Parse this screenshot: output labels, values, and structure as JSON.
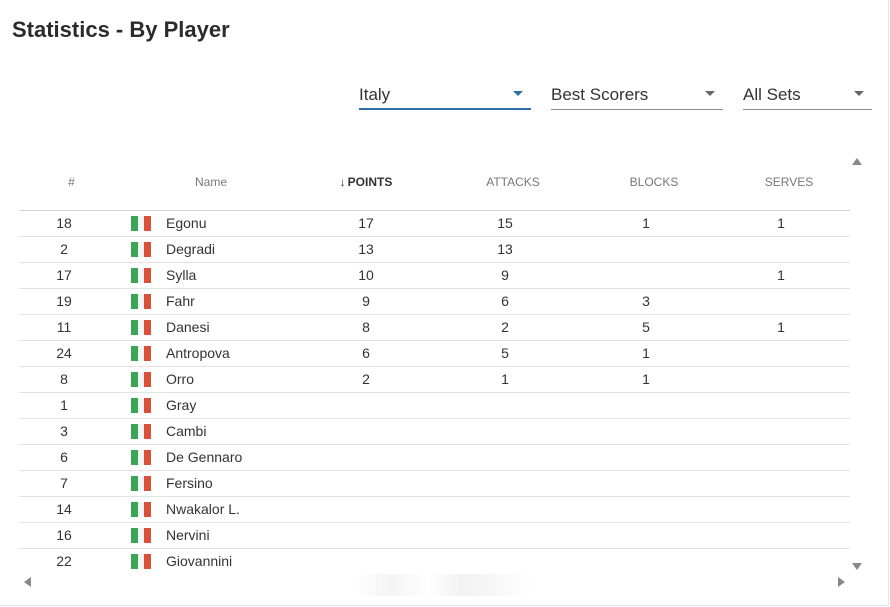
{
  "page": {
    "title": "Statistics - By Player"
  },
  "filters": {
    "country": "Italy",
    "stat": "Best Scorers",
    "sets": "All Sets"
  },
  "colors": {
    "accent": "#2a6fa8",
    "flag_green": "#3aa655",
    "flag_white": "#f4f4f4",
    "flag_red": "#d9503a"
  },
  "table": {
    "headers": {
      "num": "#",
      "name": "Name",
      "points_arrow": "↓",
      "points": "POINTS",
      "attacks": "ATTACKS",
      "blocks": "BLOCKS",
      "serves": "SERVES"
    },
    "rows": [
      {
        "num": "18",
        "name": "Egonu",
        "points": "17",
        "attacks": "15",
        "blocks": "1",
        "serves": "1"
      },
      {
        "num": "2",
        "name": "Degradi",
        "points": "13",
        "attacks": "13",
        "blocks": "",
        "serves": ""
      },
      {
        "num": "17",
        "name": "Sylla",
        "points": "10",
        "attacks": "9",
        "blocks": "",
        "serves": "1"
      },
      {
        "num": "19",
        "name": "Fahr",
        "points": "9",
        "attacks": "6",
        "blocks": "3",
        "serves": ""
      },
      {
        "num": "11",
        "name": "Danesi",
        "points": "8",
        "attacks": "2",
        "blocks": "5",
        "serves": "1"
      },
      {
        "num": "24",
        "name": "Antropova",
        "points": "6",
        "attacks": "5",
        "blocks": "1",
        "serves": ""
      },
      {
        "num": "8",
        "name": "Orro",
        "points": "2",
        "attacks": "1",
        "blocks": "1",
        "serves": ""
      },
      {
        "num": "1",
        "name": "Gray",
        "points": "",
        "attacks": "",
        "blocks": "",
        "serves": ""
      },
      {
        "num": "3",
        "name": "Cambi",
        "points": "",
        "attacks": "",
        "blocks": "",
        "serves": ""
      },
      {
        "num": "6",
        "name": "De Gennaro",
        "points": "",
        "attacks": "",
        "blocks": "",
        "serves": ""
      },
      {
        "num": "7",
        "name": "Fersino",
        "points": "",
        "attacks": "",
        "blocks": "",
        "serves": ""
      },
      {
        "num": "14",
        "name": "Nwakalor L.",
        "points": "",
        "attacks": "",
        "blocks": "",
        "serves": ""
      },
      {
        "num": "16",
        "name": "Nervini",
        "points": "",
        "attacks": "",
        "blocks": "",
        "serves": ""
      },
      {
        "num": "22",
        "name": "Giovannini",
        "points": "",
        "attacks": "",
        "blocks": "",
        "serves": ""
      }
    ]
  }
}
